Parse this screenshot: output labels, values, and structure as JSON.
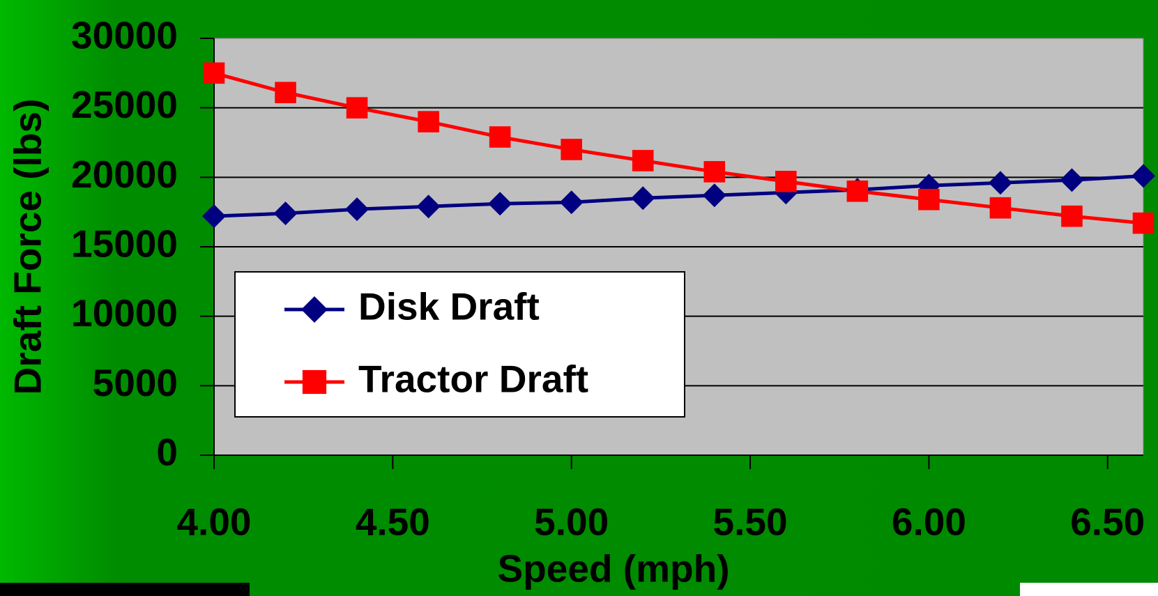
{
  "chart_data": {
    "type": "line",
    "x_label": "Speed (mph)",
    "y_label": "Draft Force (lbs)",
    "x": [
      4.0,
      4.2,
      4.4,
      4.6,
      4.8,
      5.0,
      5.2,
      5.4,
      5.6,
      5.8,
      6.0,
      6.2,
      6.4,
      6.6
    ],
    "series": [
      {
        "name": "Disk Draft",
        "color": "#000080",
        "marker": "diamond",
        "values": [
          17200,
          17400,
          17700,
          17900,
          18100,
          18200,
          18500,
          18700,
          18900,
          19100,
          19400,
          19600,
          19800,
          20100
        ]
      },
      {
        "name": "Tractor Draft",
        "color": "#ff0000",
        "marker": "square",
        "values": [
          27500,
          26100,
          25000,
          24000,
          22900,
          22000,
          21200,
          20400,
          19700,
          19000,
          18400,
          17800,
          17200,
          16700
        ]
      }
    ],
    "xlim": [
      4.0,
      6.6
    ],
    "xticks": [
      {
        "value": 4.0,
        "label": "4.00"
      },
      {
        "value": 4.5,
        "label": "4.50"
      },
      {
        "value": 5.0,
        "label": "5.00"
      },
      {
        "value": 5.5,
        "label": "5.50"
      },
      {
        "value": 6.0,
        "label": "6.00"
      },
      {
        "value": 6.5,
        "label": "6.50"
      }
    ],
    "ylim": [
      0,
      30000
    ],
    "yticks": [
      0,
      5000,
      10000,
      15000,
      20000,
      25000,
      30000
    ],
    "grid": true,
    "legend": "lower-left"
  }
}
